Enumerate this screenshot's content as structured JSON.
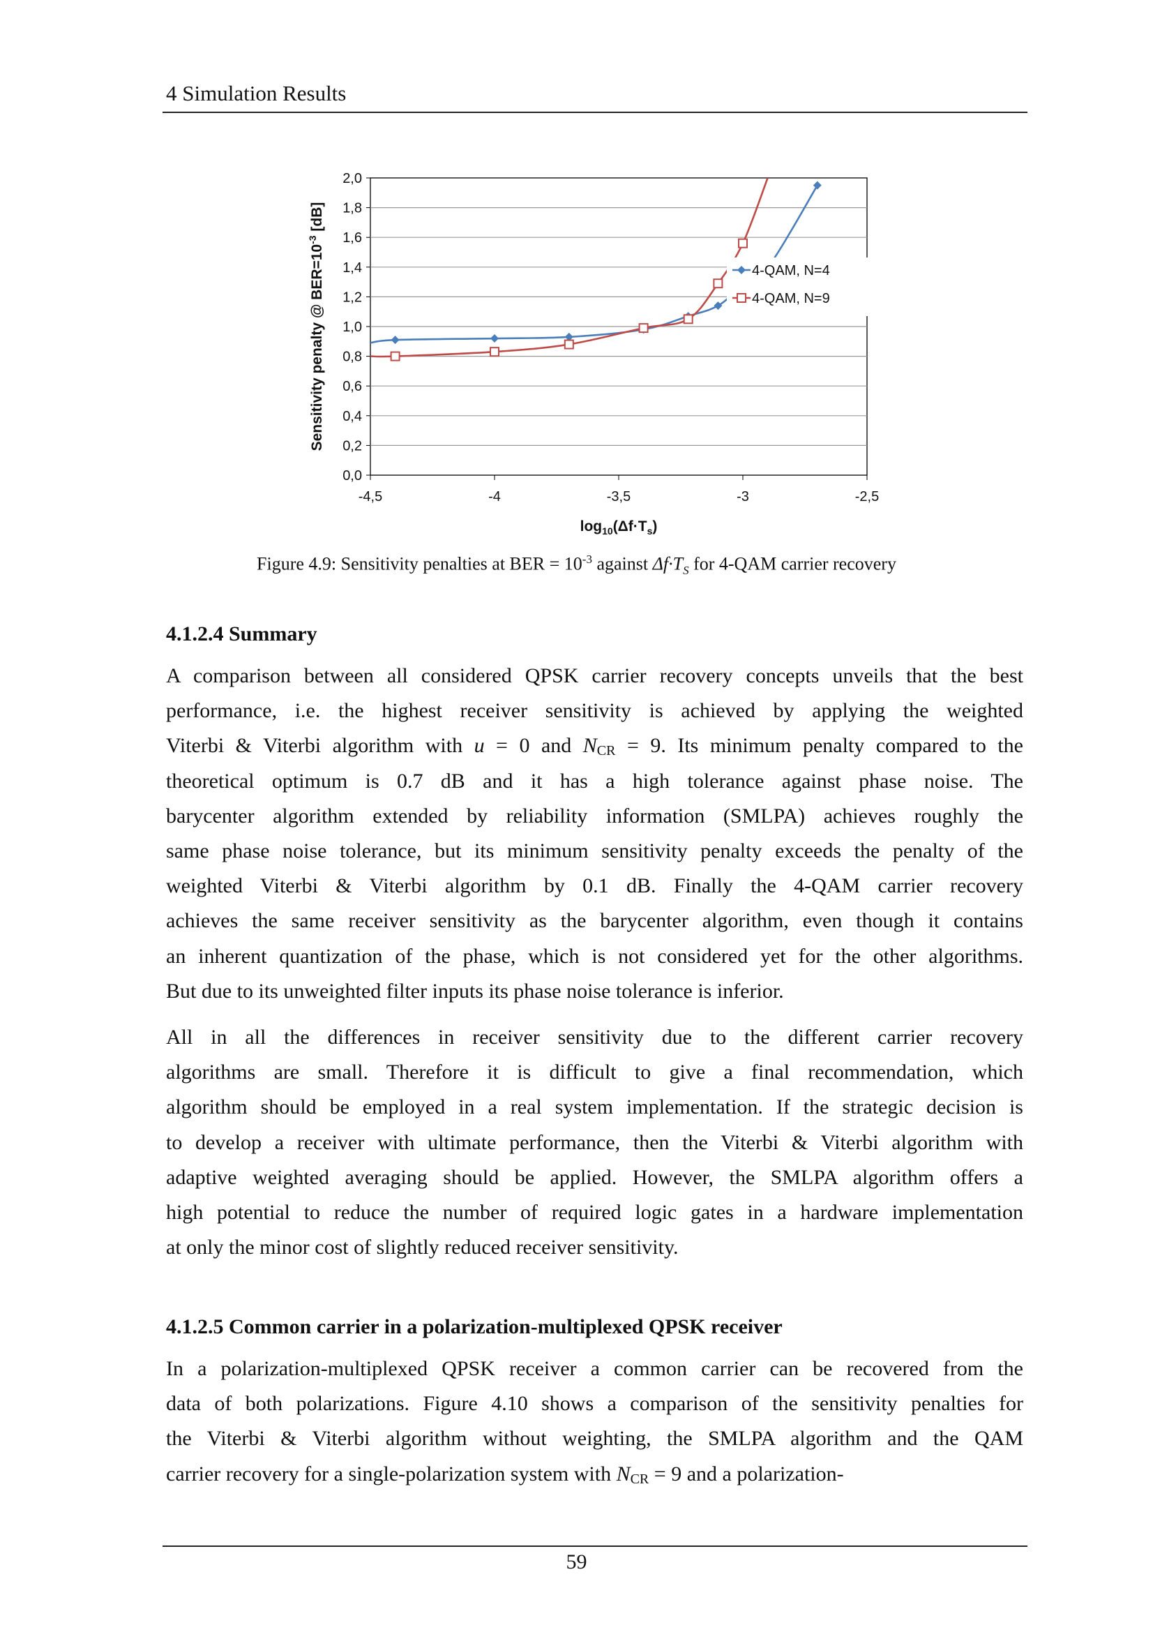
{
  "header": {
    "chapter": "4   Simulation Results"
  },
  "figure": {
    "caption_before": "Figure 4.9: Sensitivity penalties at BER = 10",
    "caption_sup": "-3",
    "caption_after": " against ",
    "caption_var": "Δf·T",
    "caption_var_sub": "S",
    "caption_end": " for 4-QAM carrier recovery"
  },
  "chart_data": {
    "type": "line",
    "title": "",
    "xlabel": "log10(Δf·Ts)",
    "ylabel": "Sensitivity penalty @ BER=10-3 [dB]",
    "xlim": [
      -4.5,
      -2.5
    ],
    "ylim": [
      0.0,
      2.0
    ],
    "xticks": [
      "-4,5",
      "-4",
      "-3,5",
      "-3",
      "-2,5"
    ],
    "yticks": [
      "0,0",
      "0,2",
      "0,4",
      "0,6",
      "0,8",
      "1,0",
      "1,2",
      "1,4",
      "1,6",
      "1,8",
      "2,0"
    ],
    "grid": true,
    "legend_position": "bottom-right",
    "series": [
      {
        "name": "4-QAM, N=4",
        "color": "#4a7ebb",
        "marker": "diamond",
        "x": [
          -4.5,
          -4.4,
          -4.0,
          -3.7,
          -3.4,
          -3.22,
          -3.1,
          -3.0,
          -2.89,
          -2.7
        ],
        "y": [
          0.89,
          0.91,
          0.92,
          0.93,
          0.98,
          1.07,
          1.14,
          1.28,
          1.42,
          1.95
        ]
      },
      {
        "name": "4-QAM, N=9",
        "color": "#be4b48",
        "marker": "square",
        "x": [
          -4.5,
          -4.4,
          -4.0,
          -3.7,
          -3.4,
          -3.22,
          -3.1,
          -3.0,
          -2.9
        ],
        "y": [
          0.8,
          0.8,
          0.83,
          0.88,
          0.99,
          1.05,
          1.29,
          1.56,
          2.0
        ]
      }
    ]
  },
  "sections": [
    {
      "title": "4.1.2.4  Summary",
      "lines": [
        [
          "A comparison between all considered QPSK carrier recovery concepts unveils that the best"
        ],
        [
          "performance, i.e. the highest receiver sensitivity is achieved by applying the weighted"
        ],
        [
          "Viterbi & Viterbi algorithm with ",
          {
            "i": "u"
          },
          " = 0 and ",
          {
            "i": "N"
          },
          {
            "sub": "CR"
          },
          " = 9. Its minimum penalty compared to the"
        ],
        [
          "theoretical optimum is 0.7 dB and it has a high tolerance against phase noise. The"
        ],
        [
          "barycenter algorithm extended by reliability information (SMLPA) achieves roughly the"
        ],
        [
          "same phase noise tolerance, but its minimum sensitivity penalty exceeds the penalty of the"
        ],
        [
          "weighted Viterbi & Viterbi algorithm by 0.1 dB. Finally the 4-QAM carrier recovery"
        ],
        [
          "achieves the same receiver sensitivity as the barycenter algorithm, even though it contains"
        ],
        [
          "an inherent quantization of the phase, which is not considered yet for the other algorithms."
        ],
        [
          "But due to its unweighted filter inputs its phase noise tolerance is inferior."
        ],
        [],
        [
          "All in all the differences in receiver sensitivity due to the different carrier recovery"
        ],
        [
          "algorithms are small. Therefore it is difficult to give a final recommendation, which"
        ],
        [
          "algorithm should be employed in a real system implementation. If the strategic decision is"
        ],
        [
          "to develop a receiver with ultimate performance, then the Viterbi & Viterbi algorithm with"
        ],
        [
          "adaptive weighted averaging should be applied. However, the SMLPA algorithm offers a"
        ],
        [
          "high potential to reduce the number of required logic gates in a hardware implementation"
        ],
        [
          "at only the minor cost of slightly reduced receiver sensitivity."
        ]
      ]
    },
    {
      "title": "4.1.2.5  Common carrier in a polarization-multiplexed QPSK receiver",
      "lines": [
        [
          "In a polarization-multiplexed QPSK receiver a common carrier can be recovered from the"
        ],
        [
          "data of both polarizations. Figure 4.10 shows a comparison of the sensitivity penalties for"
        ],
        [
          "the Viterbi & Viterbi algorithm without weighting, the SMLPA algorithm and the QAM"
        ],
        [
          "carrier recovery for a single-polarization system with ",
          {
            "i": "N"
          },
          {
            "sub": "CR"
          },
          " = 9 and a polarization-"
        ]
      ]
    }
  ],
  "footer": {
    "page_number": "59"
  }
}
